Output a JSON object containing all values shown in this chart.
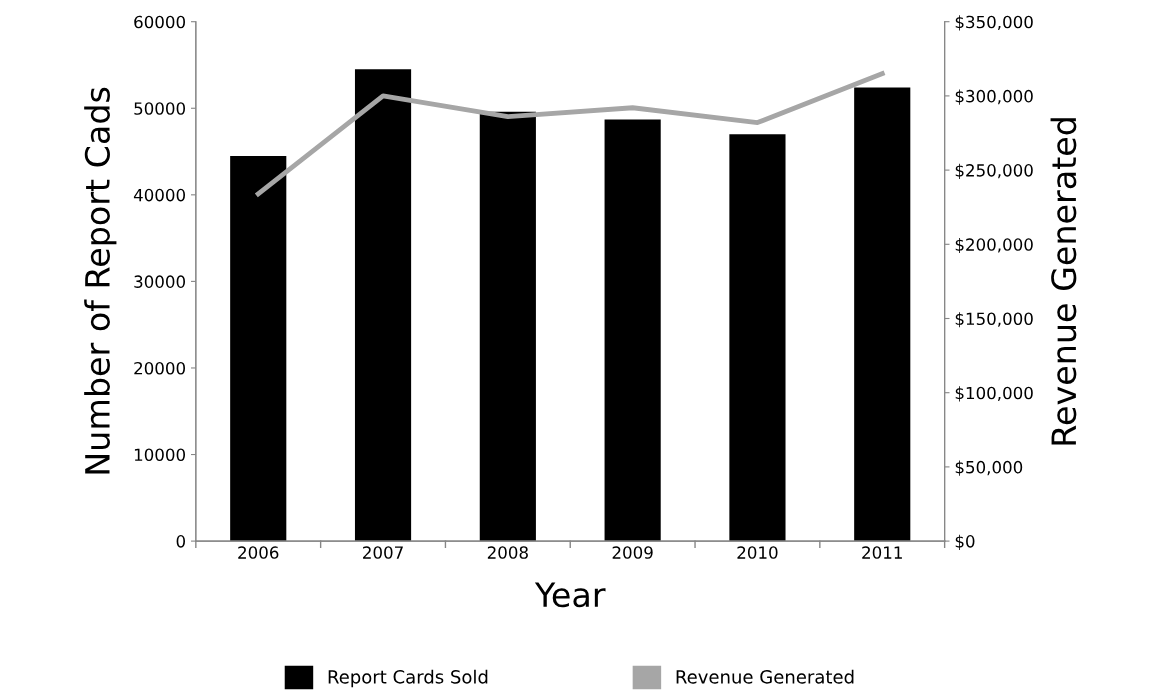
{
  "chart_data": {
    "type": "bar",
    "categories": [
      "2006",
      "2007",
      "2008",
      "2009",
      "2010",
      "2011"
    ],
    "xlabel": "Year",
    "ylabel": "Number of Report Cads",
    "y2label": "Revenue Generated",
    "series": [
      {
        "name": "Report Cards Sold",
        "color": "#000000",
        "values": [
          44500,
          54500,
          49600,
          48700,
          47000,
          52400
        ]
      },
      {
        "name": "Revenue Generated",
        "type": "line",
        "axis": "y2",
        "color": "#a6a6a6",
        "values": [
          234000,
          300000,
          286000,
          292000,
          282000,
          315000
        ]
      }
    ],
    "ylim": [
      0,
      60000
    ],
    "yticks": [
      0,
      10000,
      20000,
      30000,
      40000,
      50000,
      60000
    ],
    "y2lim": [
      0,
      350000
    ],
    "y2ticks": [
      {
        "value": 0,
        "label": "$0"
      },
      {
        "value": 50000,
        "label": "$50,000"
      },
      {
        "value": 100000,
        "label": "$100,000"
      },
      {
        "value": 150000,
        "label": "$150,000"
      },
      {
        "value": 200000,
        "label": "$200,000"
      },
      {
        "value": 250000,
        "label": "$250,000"
      },
      {
        "value": 300000,
        "label": "$300,000"
      },
      {
        "value": 350000,
        "label": "$350,000"
      }
    ],
    "grid": false,
    "legend": "bottom",
    "marker": "none"
  }
}
